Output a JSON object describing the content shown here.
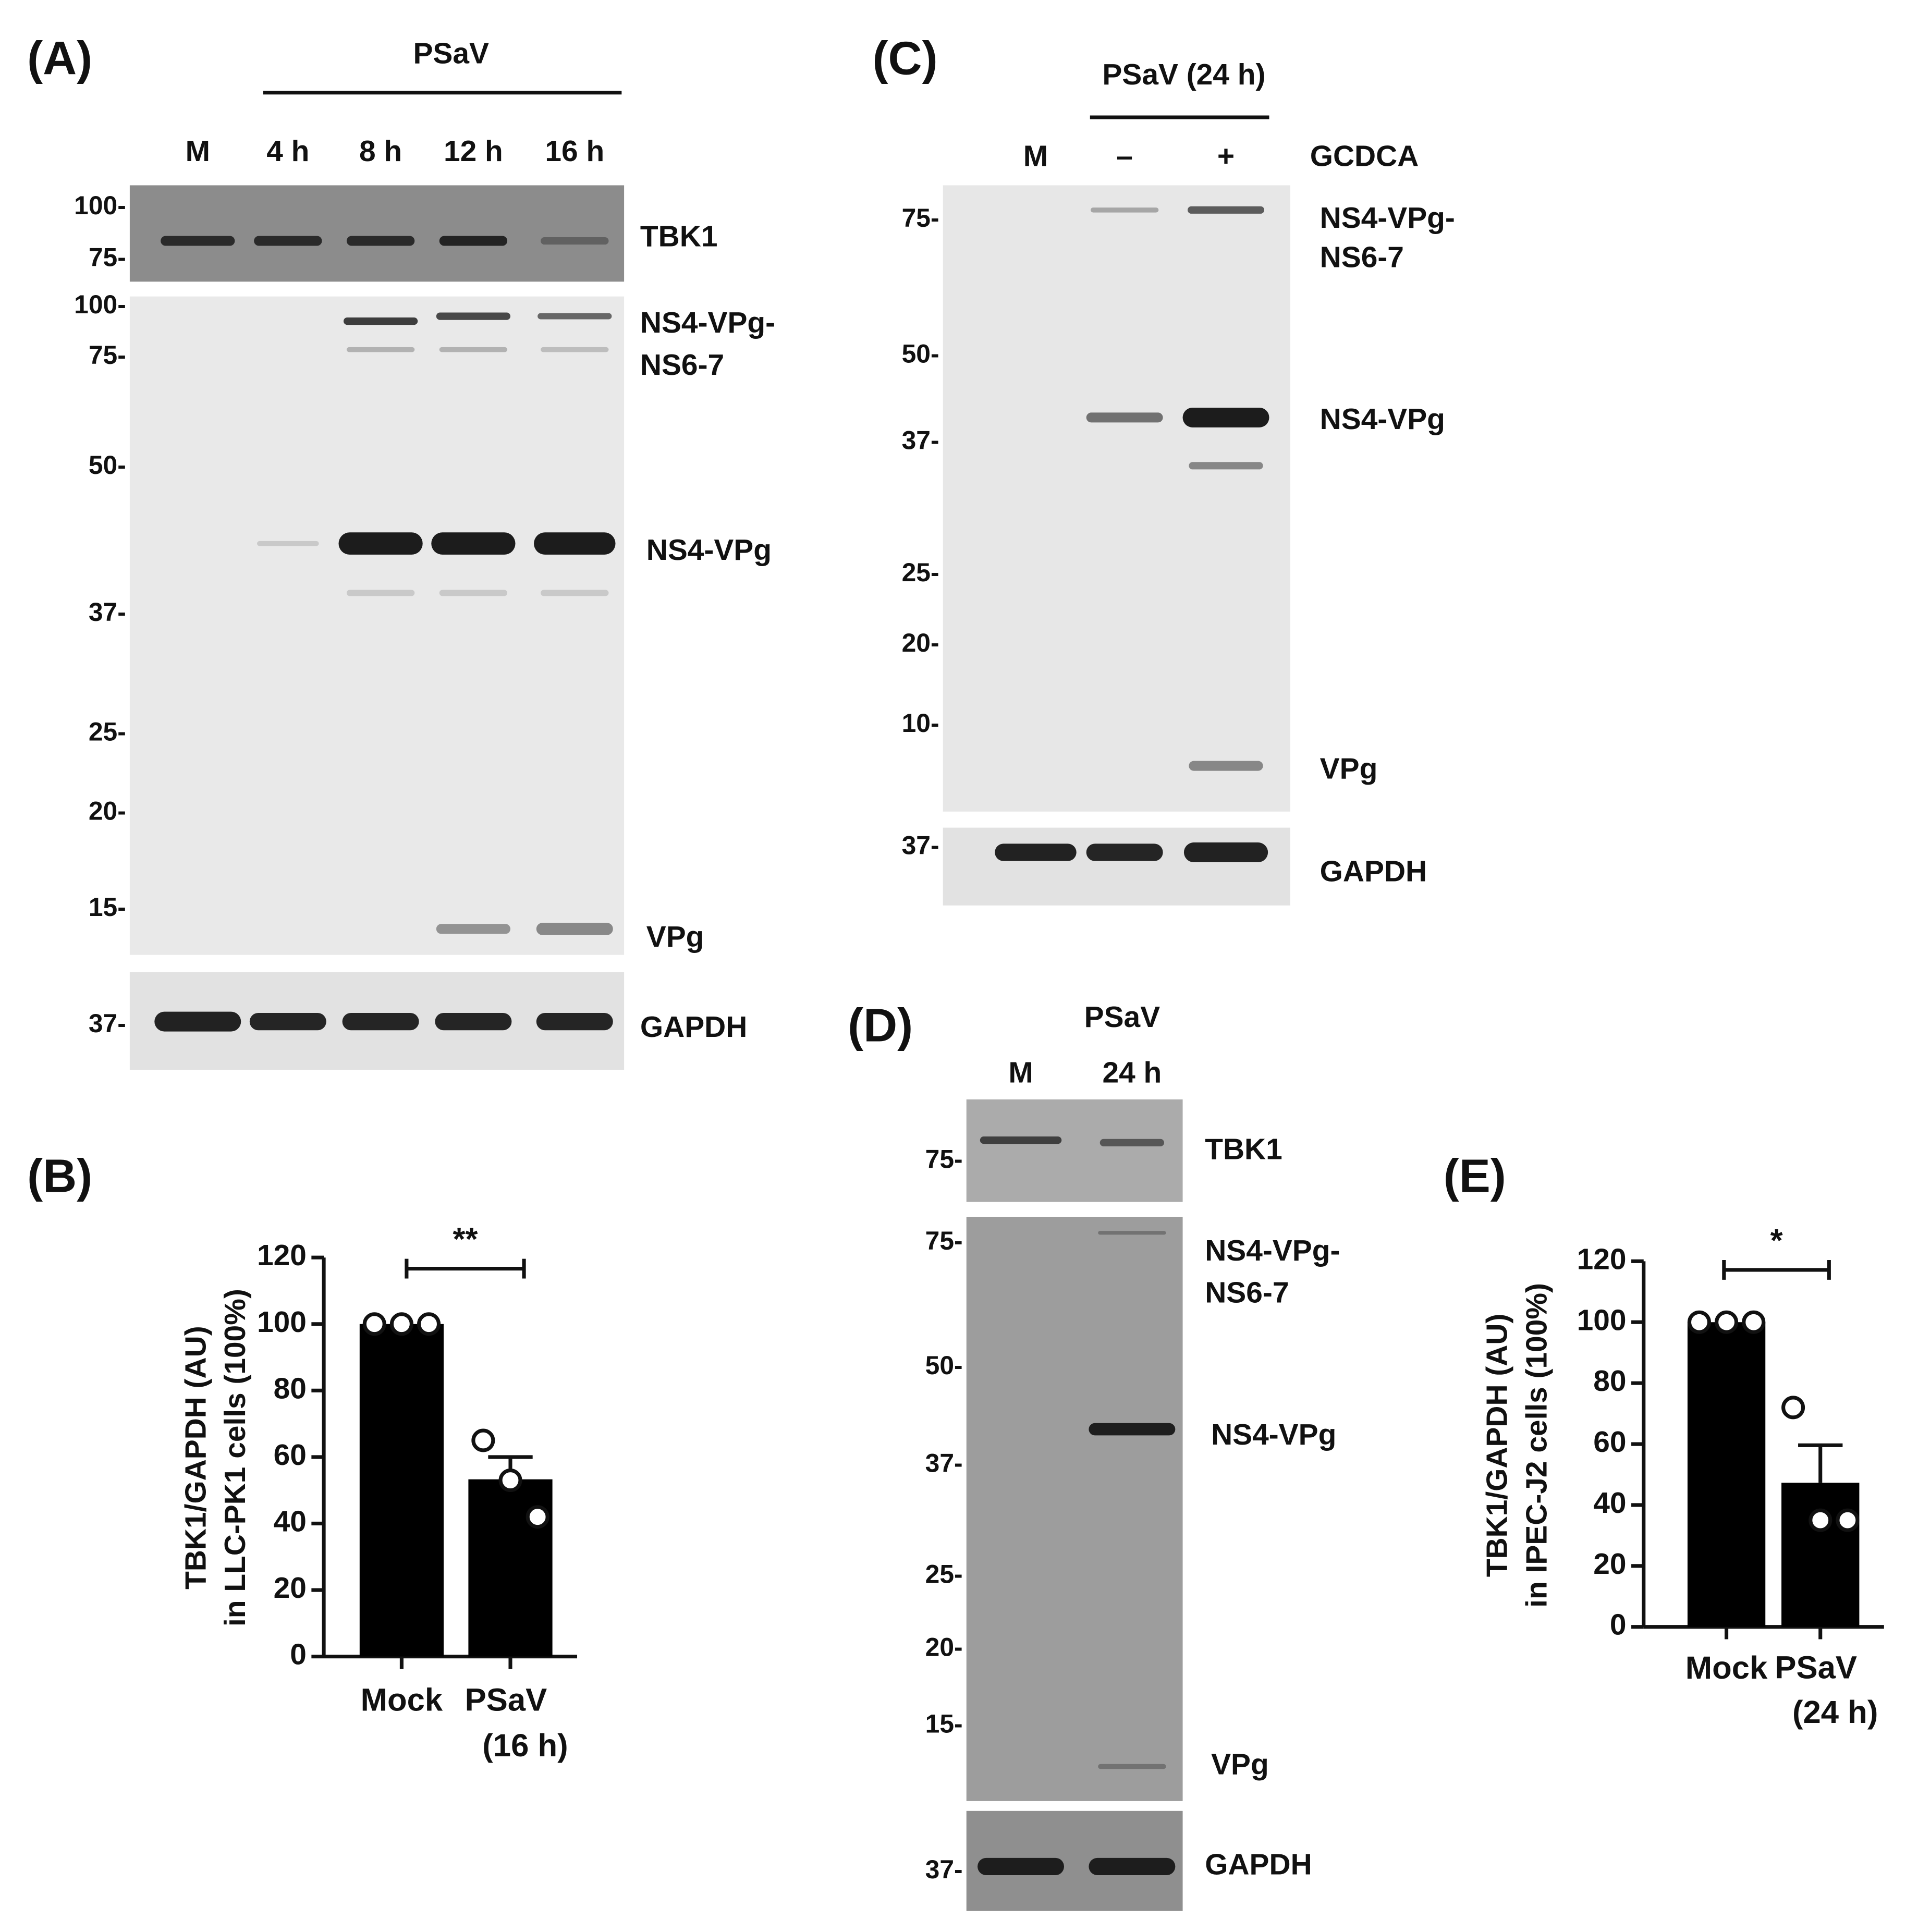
{
  "panels": {
    "A": {
      "label": "(A)",
      "treatment": "PSaV",
      "lanes": [
        "M",
        "4 h",
        "8 h",
        "12 h",
        "16 h"
      ],
      "blots": [
        {
          "markers": [
            "100-",
            "75-"
          ],
          "bands": [
            "TBK1"
          ]
        },
        {
          "markers": [
            "100-",
            "75-",
            "50-",
            "37-",
            "25-",
            "20-",
            "15-"
          ],
          "bands": [
            "NS4-VPg-",
            "NS6-7",
            "NS4-VPg",
            "VPg"
          ]
        },
        {
          "markers": [
            "37-"
          ],
          "bands": [
            "GAPDH"
          ]
        }
      ]
    },
    "C": {
      "label": "(C)",
      "treatment": "PSaV (24 h)",
      "lanes": [
        "M",
        "–",
        "+"
      ],
      "condition": "GCDCA",
      "blots": [
        {
          "markers": [
            "75-",
            "50-",
            "37-",
            "25-",
            "20-",
            "10-"
          ],
          "bands": [
            "NS4-VPg-",
            "NS6-7",
            "NS4-VPg",
            "VPg"
          ]
        },
        {
          "markers": [
            "37-"
          ],
          "bands": [
            "GAPDH"
          ]
        }
      ]
    },
    "D": {
      "label": "(D)",
      "treatment": "PSaV",
      "lanes": [
        "M",
        "24 h"
      ],
      "blots": [
        {
          "markers": [
            "75-"
          ],
          "bands": [
            "TBK1"
          ]
        },
        {
          "markers": [
            "75-",
            "50-",
            "37-",
            "25-",
            "20-",
            "15-"
          ],
          "bands": [
            "NS4-VPg-",
            "NS6-7",
            "NS4-VPg",
            "VPg"
          ]
        },
        {
          "markers": [
            "37-"
          ],
          "bands": [
            "GAPDH"
          ]
        }
      ]
    }
  },
  "chart_data": [
    {
      "type": "bar",
      "label": "(B)",
      "ylabel": [
        "TBK1/GAPDH (AU)",
        "in LLC-PK1 cells (100%)"
      ],
      "categories": [
        "Mock",
        "PSaV (16 h)"
      ],
      "values": [
        100,
        53.3
      ],
      "errors": [
        0,
        6.7
      ],
      "points": [
        [
          100,
          100,
          100
        ],
        [
          65,
          53,
          42
        ]
      ],
      "color": "#000000",
      "ylim": [
        0,
        120
      ],
      "yticks": [
        0,
        20,
        40,
        60,
        80,
        100,
        120
      ],
      "significance": "**"
    },
    {
      "type": "bar",
      "label": "(E)",
      "ylabel": [
        "TBK1/GAPDH (AU)",
        "in IPEC-J2 cells (100%)"
      ],
      "categories": [
        "Mock",
        "PSaV (24 h)"
      ],
      "values": [
        100,
        47.3
      ],
      "errors": [
        0,
        12.3
      ],
      "points": [
        [
          100,
          100,
          100
        ],
        [
          72,
          35,
          35
        ]
      ],
      "color": "#000000",
      "ylim": [
        0,
        120
      ],
      "yticks": [
        0,
        20,
        40,
        60,
        80,
        100,
        120
      ],
      "significance": "*"
    }
  ]
}
